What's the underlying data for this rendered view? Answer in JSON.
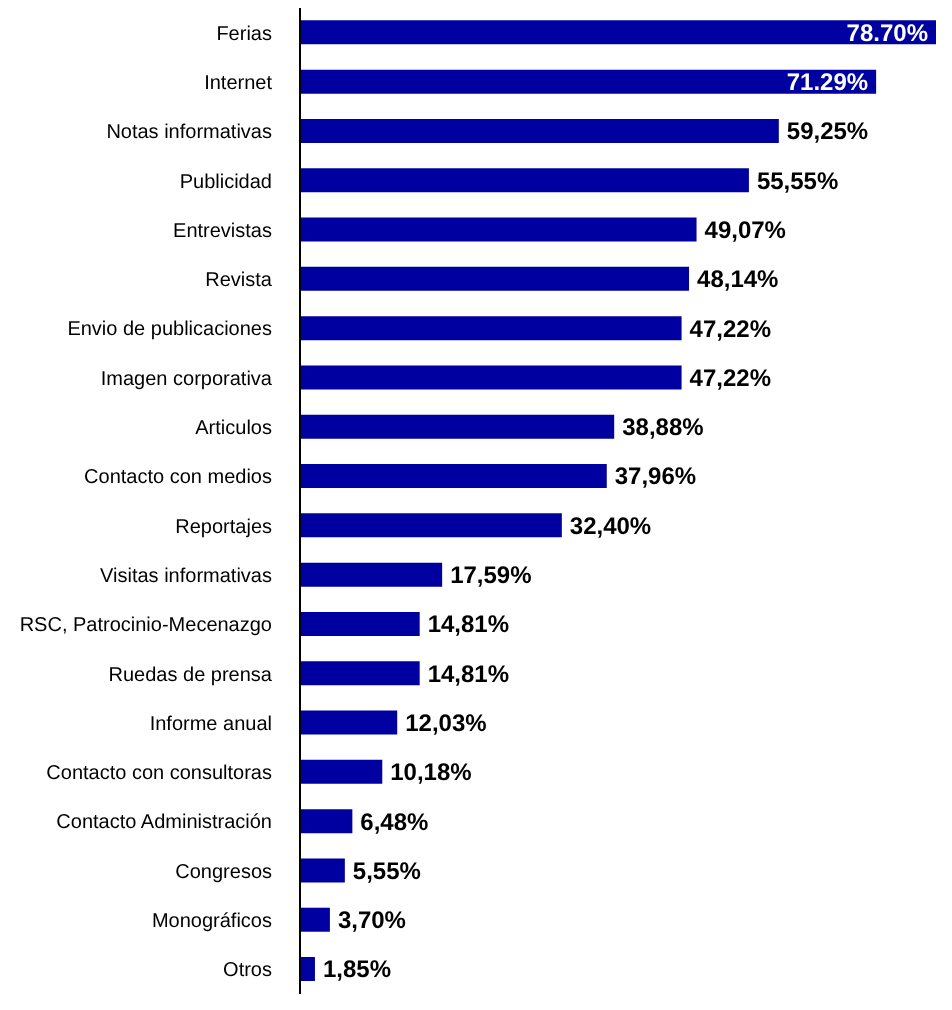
{
  "chart_data": {
    "type": "bar",
    "orientation": "horizontal",
    "color": "#0000a0",
    "categories": [
      "Ferias",
      "Internet",
      "Notas informativas",
      "Publicidad",
      "Entrevistas",
      "Revista",
      "Envio de publicaciones",
      "Imagen corporativa",
      "Articulos",
      "Contacto con medios",
      "Reportajes",
      "Visitas informativas",
      "RSC, Patrocinio-Mecenazgo",
      "Ruedas de prensa",
      "Informe anual",
      "Contacto con consultoras",
      "Contacto Administración",
      "Congresos",
      "Monográficos",
      "Otros"
    ],
    "values": [
      78.7,
      71.29,
      59.25,
      55.55,
      49.07,
      48.14,
      47.22,
      47.22,
      38.88,
      37.96,
      32.4,
      17.59,
      14.81,
      14.81,
      12.03,
      10.18,
      6.48,
      5.55,
      3.7,
      1.85
    ],
    "value_labels": [
      "78.70%",
      "71.29%",
      "59,25%",
      "55,55%",
      "49,07%",
      "48,14%",
      "47,22%",
      "47,22%",
      "38,88%",
      "37,96%",
      "32,40%",
      "17,59%",
      "14,81%",
      "14,81%",
      "12,03%",
      "10,18%",
      "6,48%",
      "5,55%",
      "3,70%",
      "1,85%"
    ]
  }
}
